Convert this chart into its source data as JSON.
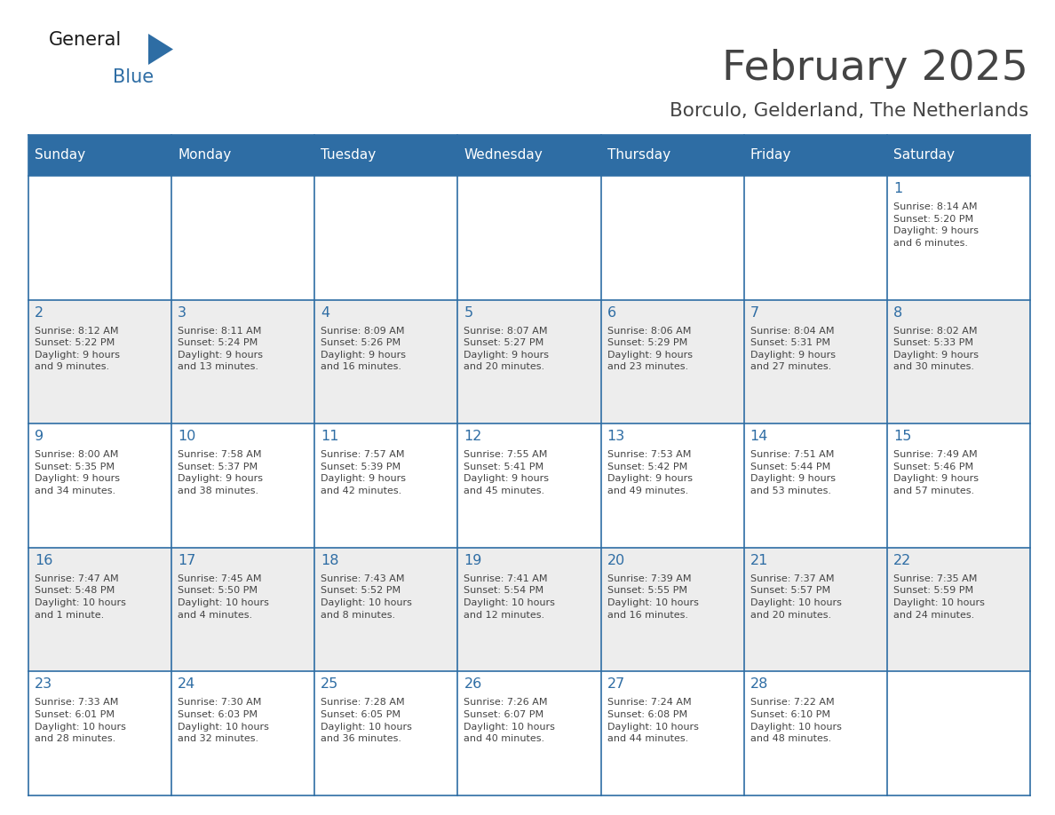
{
  "title": "February 2025",
  "subtitle": "Borculo, Gelderland, The Netherlands",
  "header_bg": "#2E6DA4",
  "header_text": "#FFFFFF",
  "cell_bg_even": "#FFFFFF",
  "cell_bg_odd": "#EDEDED",
  "border_color": "#2E6DA4",
  "text_color": "#444444",
  "day_num_color": "#2E6DA4",
  "days_of_week": [
    "Sunday",
    "Monday",
    "Tuesday",
    "Wednesday",
    "Thursday",
    "Friday",
    "Saturday"
  ],
  "calendar_data": [
    [
      {
        "day": "",
        "info": ""
      },
      {
        "day": "",
        "info": ""
      },
      {
        "day": "",
        "info": ""
      },
      {
        "day": "",
        "info": ""
      },
      {
        "day": "",
        "info": ""
      },
      {
        "day": "",
        "info": ""
      },
      {
        "day": "1",
        "info": "Sunrise: 8:14 AM\nSunset: 5:20 PM\nDaylight: 9 hours\nand 6 minutes."
      }
    ],
    [
      {
        "day": "2",
        "info": "Sunrise: 8:12 AM\nSunset: 5:22 PM\nDaylight: 9 hours\nand 9 minutes."
      },
      {
        "day": "3",
        "info": "Sunrise: 8:11 AM\nSunset: 5:24 PM\nDaylight: 9 hours\nand 13 minutes."
      },
      {
        "day": "4",
        "info": "Sunrise: 8:09 AM\nSunset: 5:26 PM\nDaylight: 9 hours\nand 16 minutes."
      },
      {
        "day": "5",
        "info": "Sunrise: 8:07 AM\nSunset: 5:27 PM\nDaylight: 9 hours\nand 20 minutes."
      },
      {
        "day": "6",
        "info": "Sunrise: 8:06 AM\nSunset: 5:29 PM\nDaylight: 9 hours\nand 23 minutes."
      },
      {
        "day": "7",
        "info": "Sunrise: 8:04 AM\nSunset: 5:31 PM\nDaylight: 9 hours\nand 27 minutes."
      },
      {
        "day": "8",
        "info": "Sunrise: 8:02 AM\nSunset: 5:33 PM\nDaylight: 9 hours\nand 30 minutes."
      }
    ],
    [
      {
        "day": "9",
        "info": "Sunrise: 8:00 AM\nSunset: 5:35 PM\nDaylight: 9 hours\nand 34 minutes."
      },
      {
        "day": "10",
        "info": "Sunrise: 7:58 AM\nSunset: 5:37 PM\nDaylight: 9 hours\nand 38 minutes."
      },
      {
        "day": "11",
        "info": "Sunrise: 7:57 AM\nSunset: 5:39 PM\nDaylight: 9 hours\nand 42 minutes."
      },
      {
        "day": "12",
        "info": "Sunrise: 7:55 AM\nSunset: 5:41 PM\nDaylight: 9 hours\nand 45 minutes."
      },
      {
        "day": "13",
        "info": "Sunrise: 7:53 AM\nSunset: 5:42 PM\nDaylight: 9 hours\nand 49 minutes."
      },
      {
        "day": "14",
        "info": "Sunrise: 7:51 AM\nSunset: 5:44 PM\nDaylight: 9 hours\nand 53 minutes."
      },
      {
        "day": "15",
        "info": "Sunrise: 7:49 AM\nSunset: 5:46 PM\nDaylight: 9 hours\nand 57 minutes."
      }
    ],
    [
      {
        "day": "16",
        "info": "Sunrise: 7:47 AM\nSunset: 5:48 PM\nDaylight: 10 hours\nand 1 minute."
      },
      {
        "day": "17",
        "info": "Sunrise: 7:45 AM\nSunset: 5:50 PM\nDaylight: 10 hours\nand 4 minutes."
      },
      {
        "day": "18",
        "info": "Sunrise: 7:43 AM\nSunset: 5:52 PM\nDaylight: 10 hours\nand 8 minutes."
      },
      {
        "day": "19",
        "info": "Sunrise: 7:41 AM\nSunset: 5:54 PM\nDaylight: 10 hours\nand 12 minutes."
      },
      {
        "day": "20",
        "info": "Sunrise: 7:39 AM\nSunset: 5:55 PM\nDaylight: 10 hours\nand 16 minutes."
      },
      {
        "day": "21",
        "info": "Sunrise: 7:37 AM\nSunset: 5:57 PM\nDaylight: 10 hours\nand 20 minutes."
      },
      {
        "day": "22",
        "info": "Sunrise: 7:35 AM\nSunset: 5:59 PM\nDaylight: 10 hours\nand 24 minutes."
      }
    ],
    [
      {
        "day": "23",
        "info": "Sunrise: 7:33 AM\nSunset: 6:01 PM\nDaylight: 10 hours\nand 28 minutes."
      },
      {
        "day": "24",
        "info": "Sunrise: 7:30 AM\nSunset: 6:03 PM\nDaylight: 10 hours\nand 32 minutes."
      },
      {
        "day": "25",
        "info": "Sunrise: 7:28 AM\nSunset: 6:05 PM\nDaylight: 10 hours\nand 36 minutes."
      },
      {
        "day": "26",
        "info": "Sunrise: 7:26 AM\nSunset: 6:07 PM\nDaylight: 10 hours\nand 40 minutes."
      },
      {
        "day": "27",
        "info": "Sunrise: 7:24 AM\nSunset: 6:08 PM\nDaylight: 10 hours\nand 44 minutes."
      },
      {
        "day": "28",
        "info": "Sunrise: 7:22 AM\nSunset: 6:10 PM\nDaylight: 10 hours\nand 48 minutes."
      },
      {
        "day": "",
        "info": ""
      }
    ]
  ],
  "logo_text_general": "General",
  "logo_text_blue": "Blue",
  "logo_color_general": "#1a1a1a",
  "logo_color_blue": "#2E6DA4",
  "logo_triangle_color": "#2E6DA4",
  "fig_width": 11.88,
  "fig_height": 9.18,
  "dpi": 100
}
